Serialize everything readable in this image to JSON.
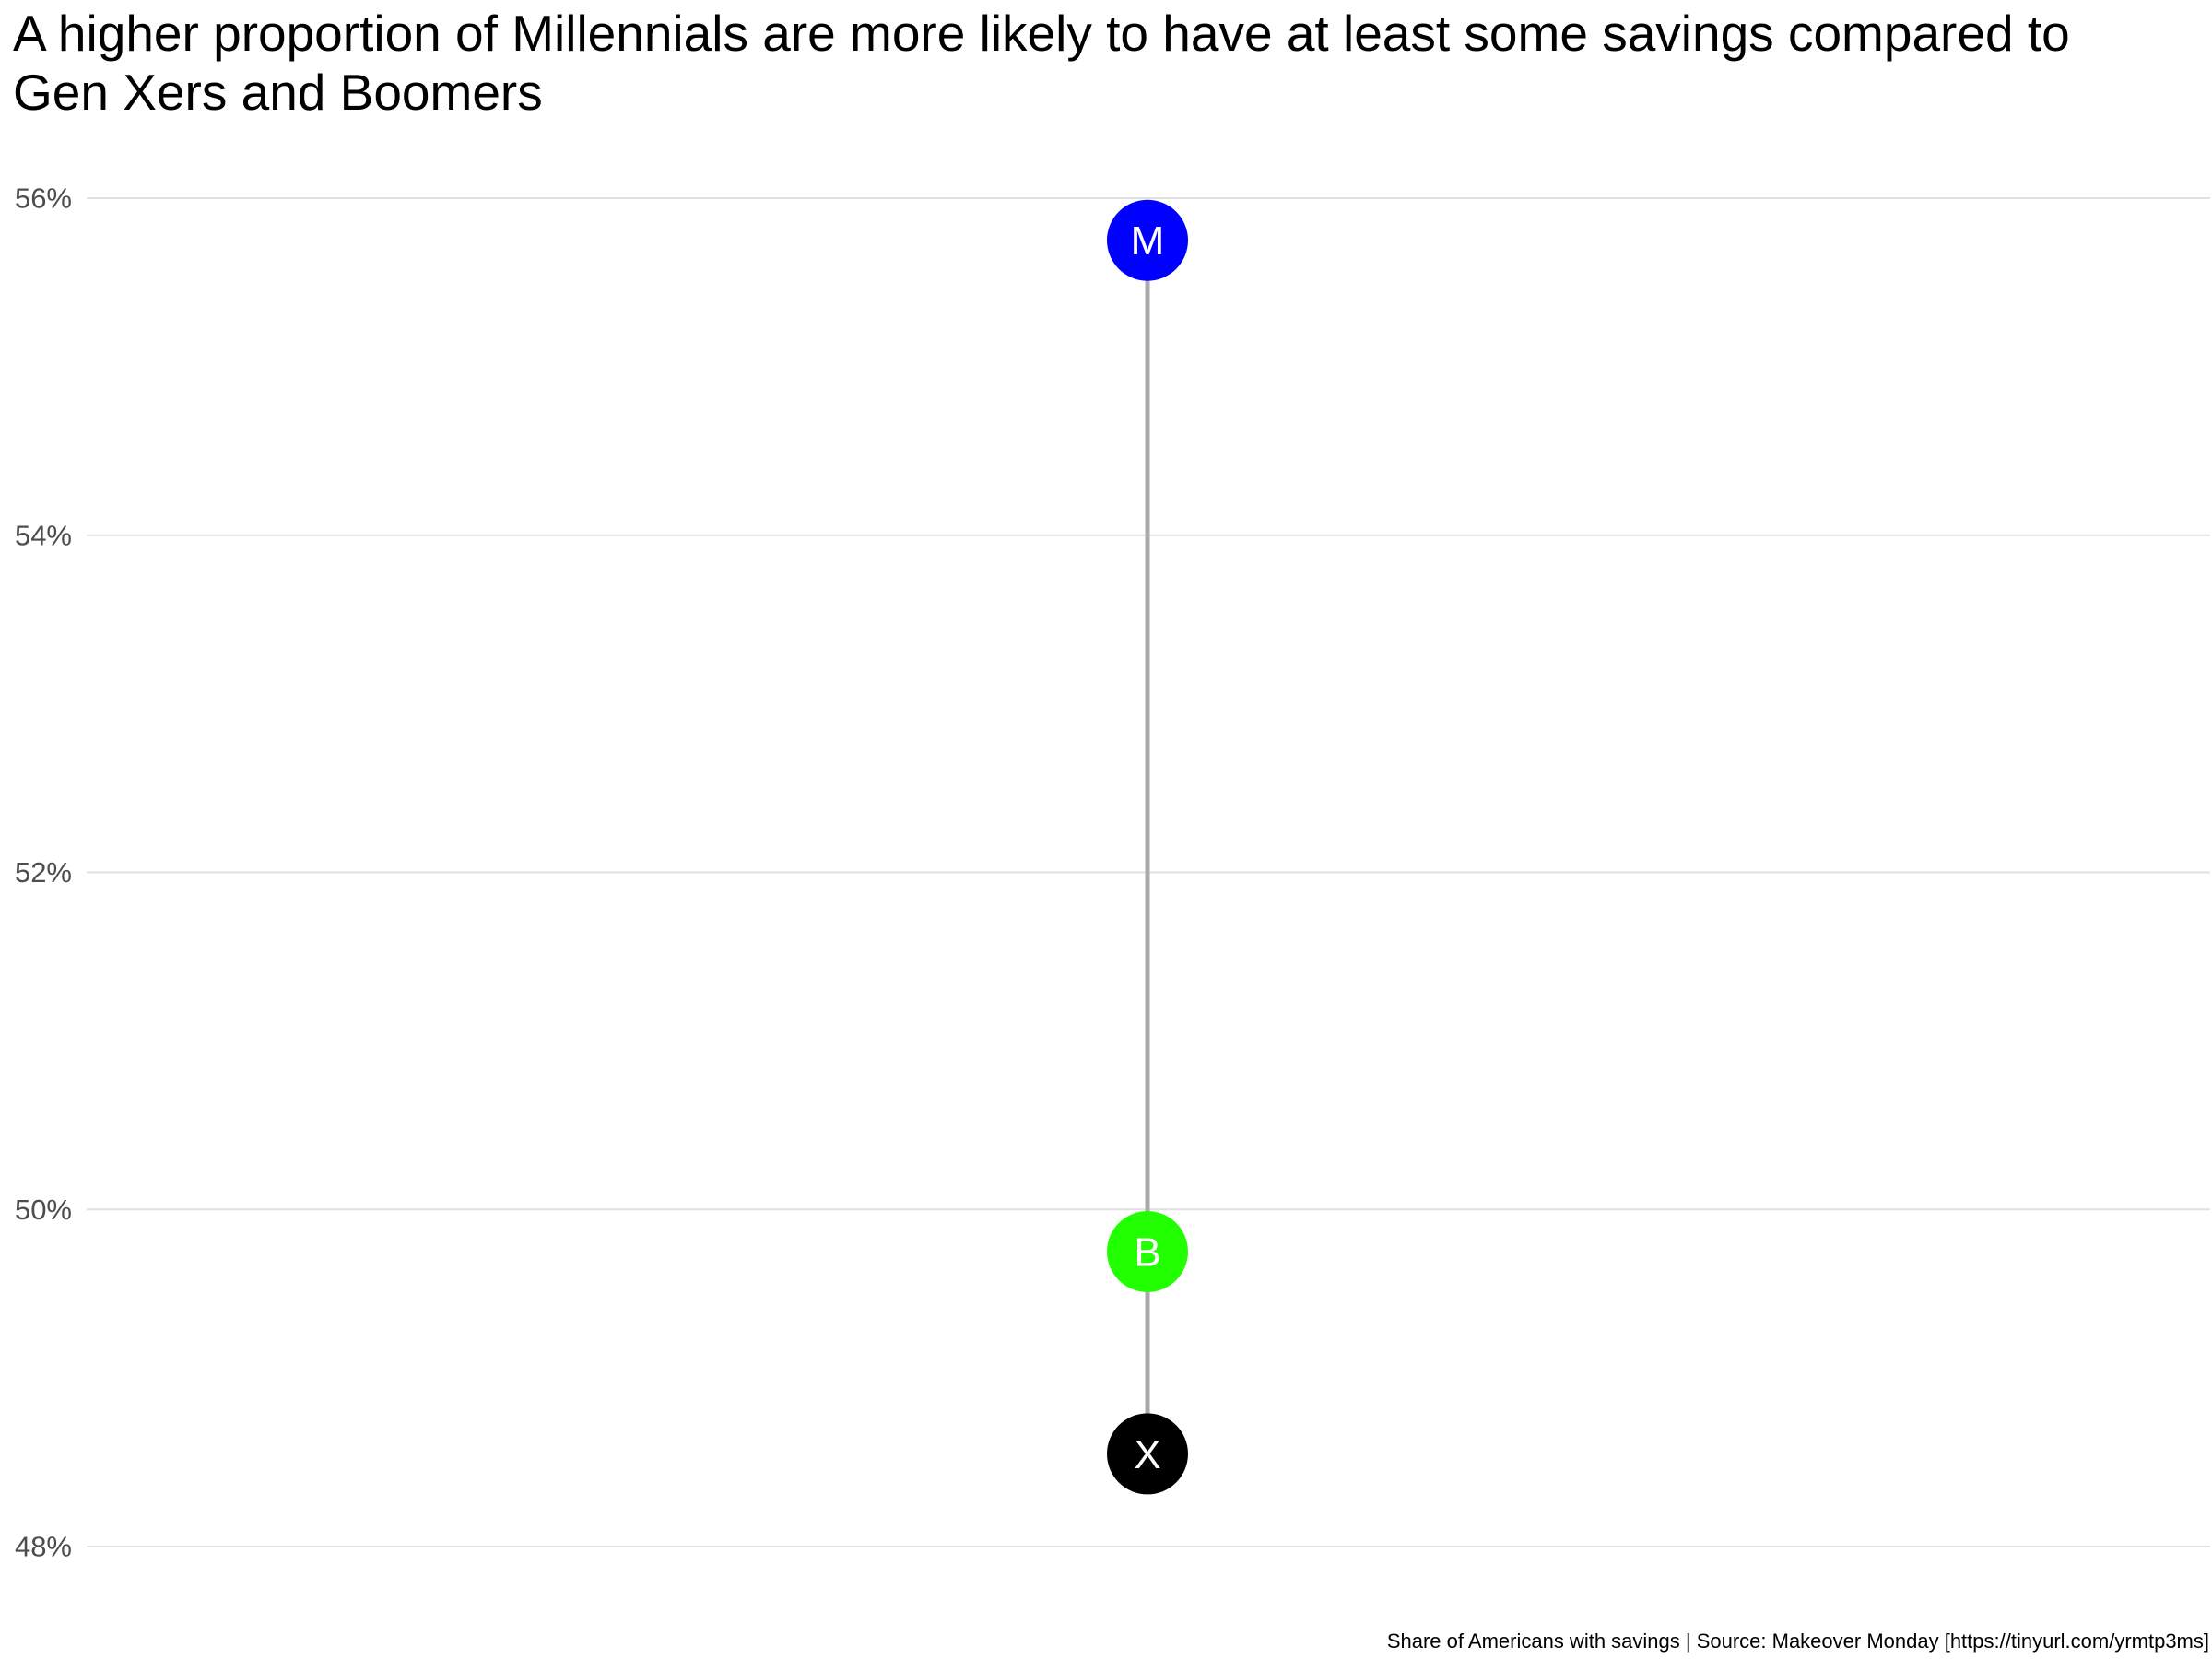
{
  "chart_data": {
    "type": "dot-range",
    "title": "A higher proportion of Millennials are more likely to have at least some savings compared to Gen Xers and Boomers",
    "caption": "Share of Americans with savings | Source: Makeover Monday [https://tinyurl.com/yrmtp3ms]",
    "ylim": [
      48,
      56
    ],
    "yticks": [
      56,
      54,
      52,
      50,
      48
    ],
    "ytick_labels": [
      "56%",
      "54%",
      "52%",
      "50%",
      "48%"
    ],
    "grid": "horizontal",
    "points": [
      {
        "label": "M",
        "value": 55.75,
        "color": "#0000ff"
      },
      {
        "label": "B",
        "value": 49.75,
        "color": "#22ff00"
      },
      {
        "label": "X",
        "value": 48.55,
        "color": "#000000"
      }
    ],
    "line_color": "#aaaaaa",
    "grid_color": "#e0e0e0"
  }
}
